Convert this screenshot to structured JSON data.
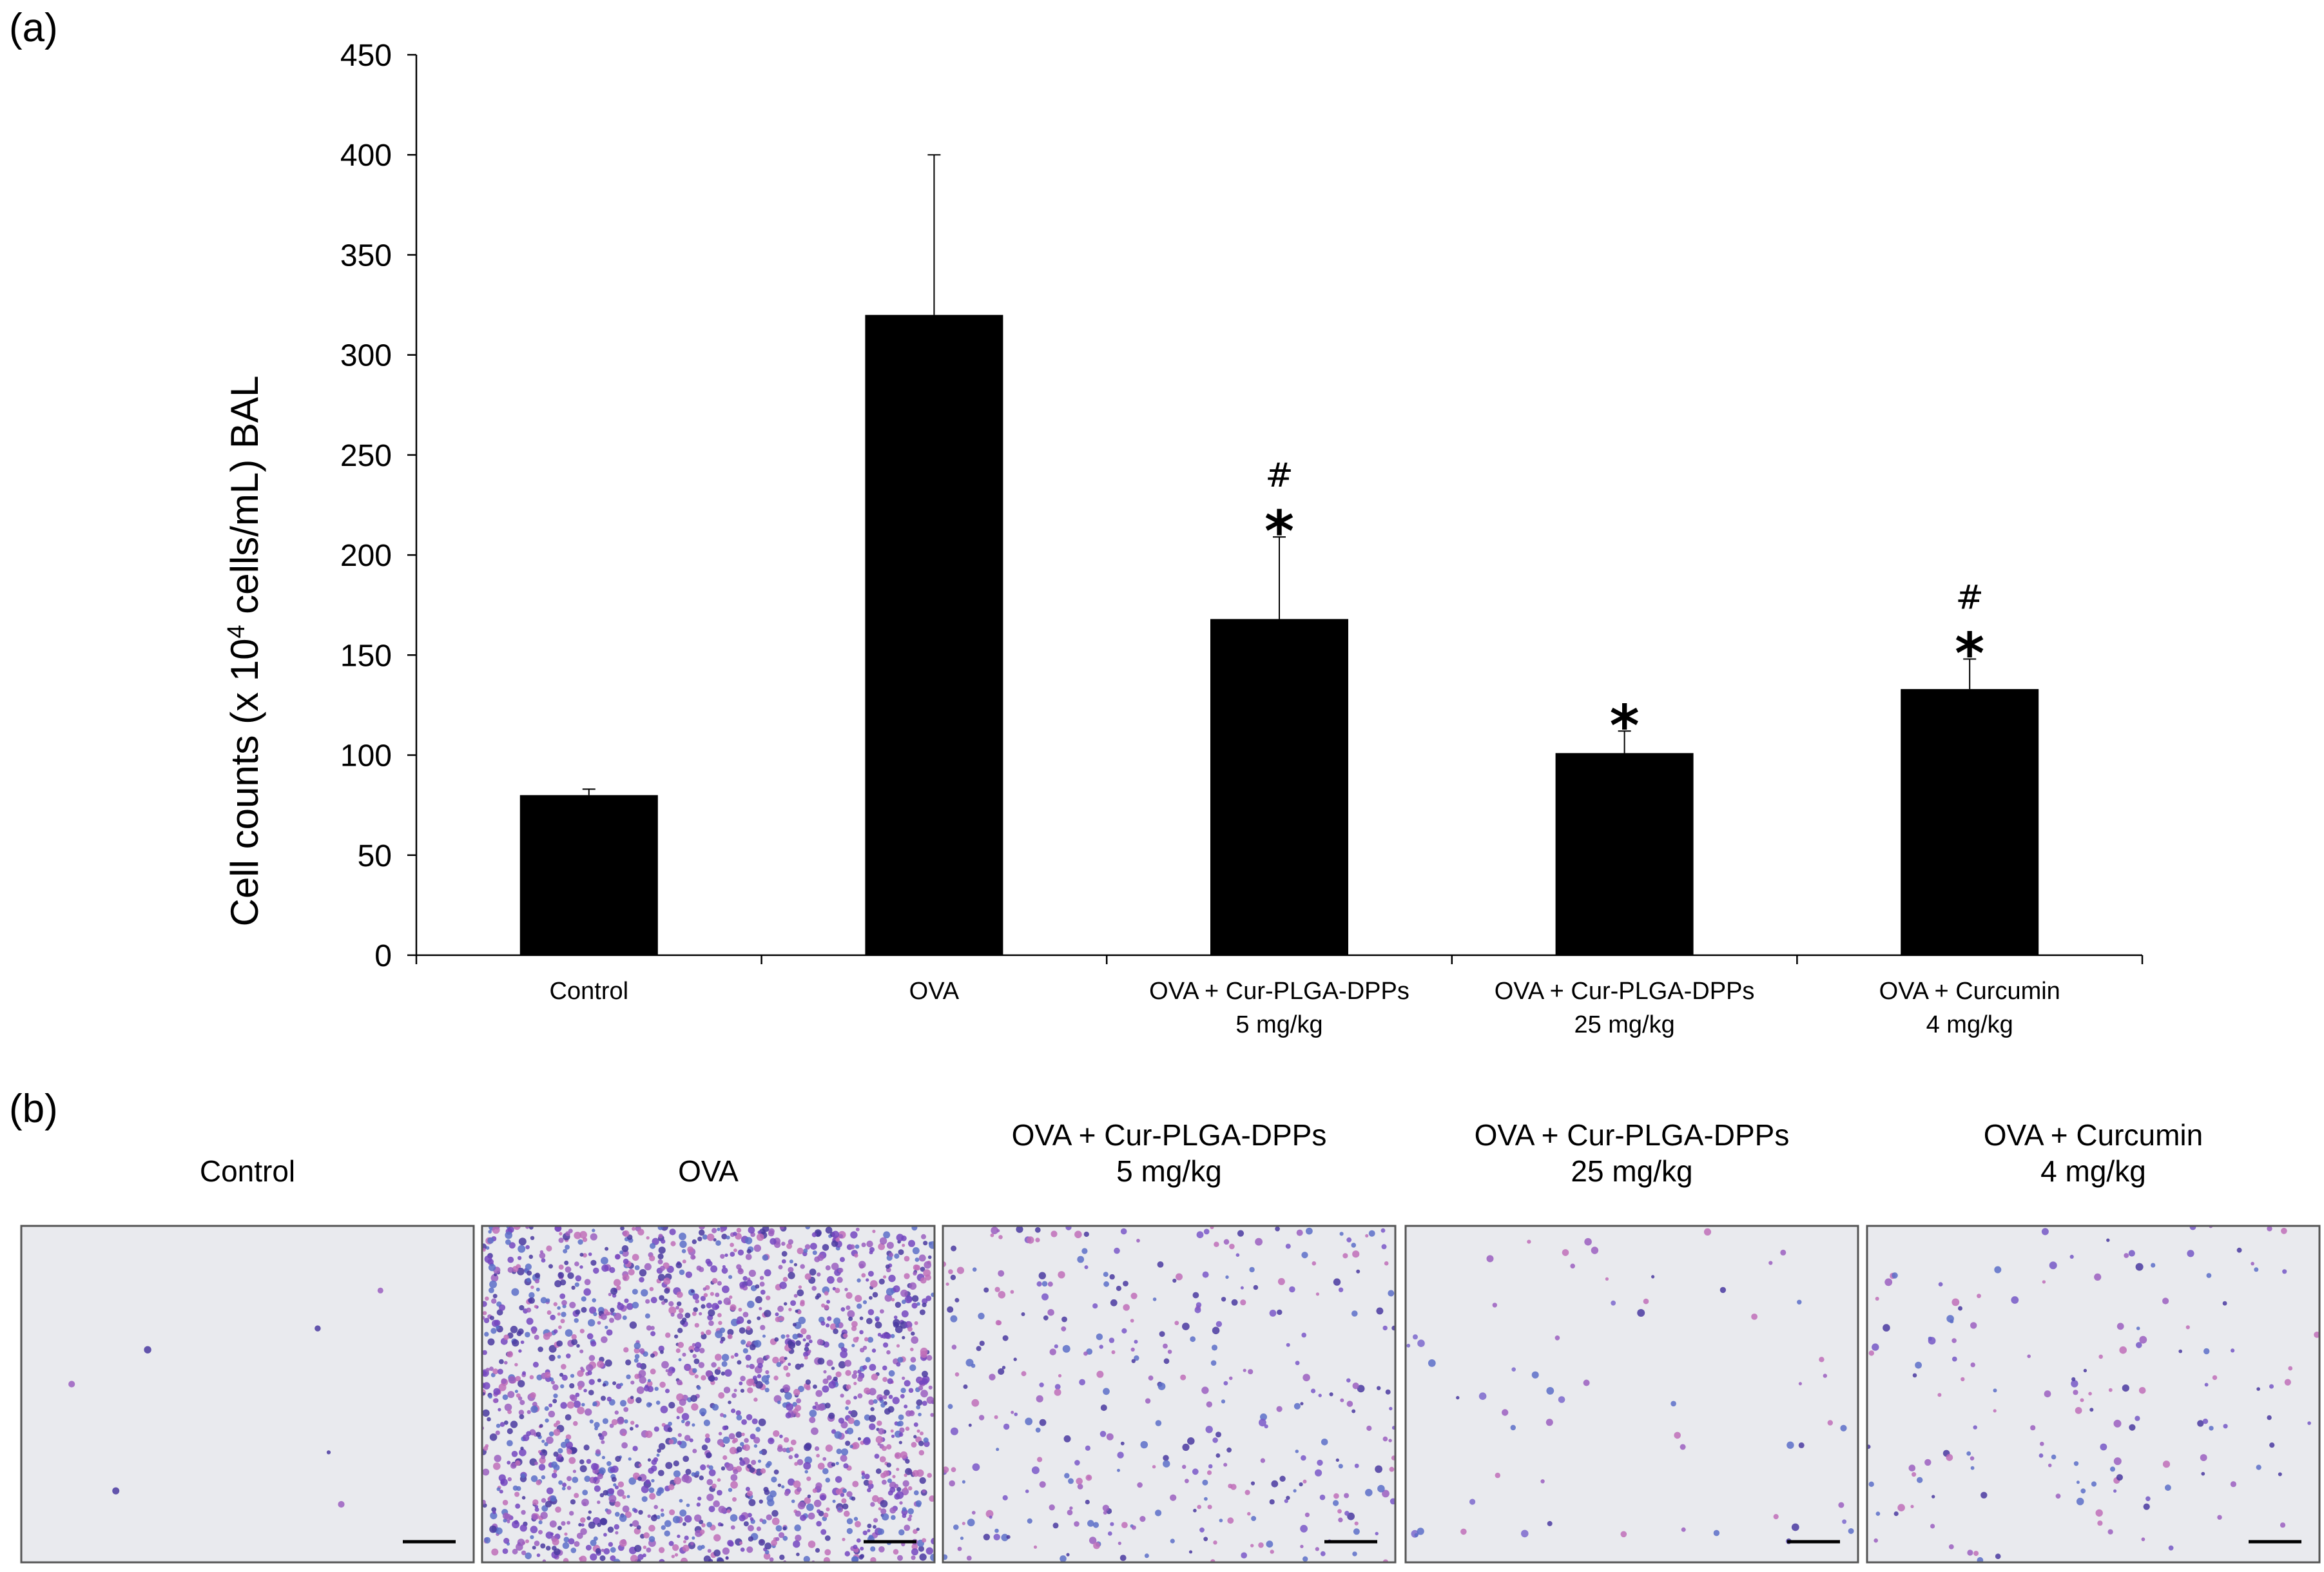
{
  "panel_a_label": "(a)",
  "panel_b_label": "(b)",
  "chart_data": {
    "type": "bar",
    "title": "",
    "xlabel": "",
    "ylabel_parts": [
      "Cell counts (x 10",
      "4",
      " cells/mL) BAL"
    ],
    "ylim": [
      0,
      450
    ],
    "yticks": [
      0,
      50,
      100,
      150,
      200,
      250,
      300,
      350,
      400,
      450
    ],
    "categories": [
      [
        "Control"
      ],
      [
        "OVA"
      ],
      [
        "OVA + Cur-PLGA-DPPs",
        "5 mg/kg"
      ],
      [
        "OVA + Cur-PLGA-DPPs",
        "25 mg/kg"
      ],
      [
        "OVA + Curcumin",
        "4 mg/kg"
      ]
    ],
    "values": [
      80,
      320,
      168,
      101,
      133
    ],
    "error_upper": [
      3,
      80,
      41,
      11,
      15
    ],
    "significance": [
      [],
      [],
      [
        "#",
        "*"
      ],
      [
        "*"
      ],
      [
        "#",
        "*"
      ]
    ],
    "bar_color": "#000000",
    "grid": false,
    "legend": "none"
  },
  "micrographs": [
    {
      "title": [
        "Control"
      ],
      "density": 0.0006,
      "color": "#b7a7d2"
    },
    {
      "title": [
        "OVA"
      ],
      "density": 0.16,
      "color": "#7446c0"
    },
    {
      "title": [
        "OVA + Cur-PLGA-DPPs",
        "5 mg/kg"
      ],
      "density": 0.03,
      "color": "#7a58c8"
    },
    {
      "title": [
        "OVA + Cur-PLGA-DPPs",
        "25 mg/kg"
      ],
      "density": 0.005,
      "color": "#7d68cc"
    },
    {
      "title": [
        "OVA + Curcumin",
        "4 mg/kg"
      ],
      "density": 0.012,
      "color": "#7658c6"
    }
  ]
}
